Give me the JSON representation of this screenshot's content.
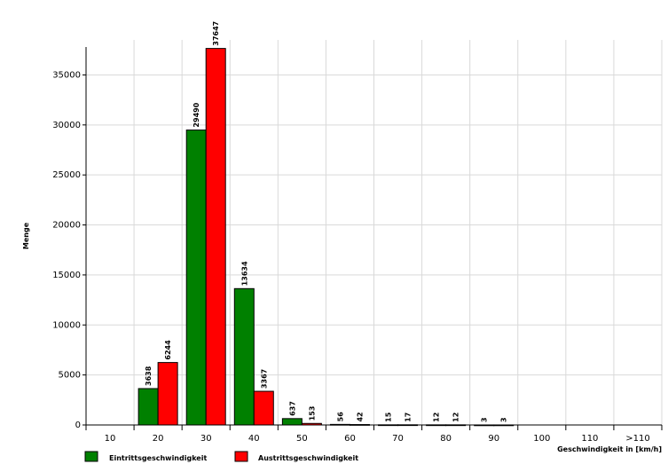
{
  "chart_data": {
    "type": "bar",
    "title": "",
    "xlabel": "Geschwindigkeit in [km/h]",
    "ylabel": "Menge",
    "categories": [
      "10",
      "20",
      "30",
      "40",
      "50",
      "60",
      "70",
      "80",
      "90",
      "100",
      "110",
      ">110"
    ],
    "y_ticks": [
      "0",
      "5000",
      "10000",
      "15000",
      "20000",
      "25000",
      "30000",
      "35000"
    ],
    "ylim": [
      0,
      38500
    ],
    "grid": true,
    "legend_position": "bottom-left",
    "series": [
      {
        "name": "Eintrittsgeschwindigkeit",
        "color": "#008000",
        "values": [
          0,
          3638,
          29490,
          13634,
          637,
          56,
          15,
          12,
          3,
          0,
          0,
          0
        ],
        "labels": [
          "",
          "3638",
          "29490",
          "13634",
          "637",
          "56",
          "15",
          "12",
          "3",
          "",
          "",
          ""
        ]
      },
      {
        "name": "Austrittsgeschwindigkeit",
        "color": "#ff0000",
        "values": [
          0,
          6244,
          37647,
          3367,
          153,
          42,
          17,
          12,
          3,
          0,
          0,
          0
        ],
        "labels": [
          "",
          "6244",
          "37647",
          "3367",
          "153",
          "42",
          "17",
          "12",
          "3",
          "",
          "",
          ""
        ]
      }
    ]
  }
}
